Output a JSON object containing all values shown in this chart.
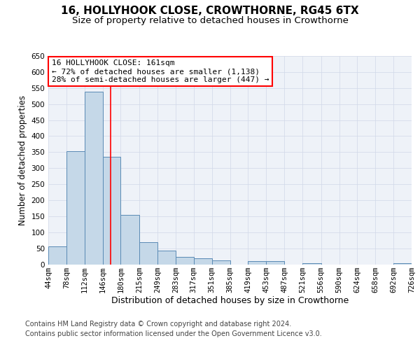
{
  "title": "16, HOLLYHOOK CLOSE, CROWTHORNE, RG45 6TX",
  "subtitle": "Size of property relative to detached houses in Crowthorne",
  "xlabel": "Distribution of detached houses by size in Crowthorne",
  "ylabel": "Number of detached properties",
  "bar_edges": [
    44,
    78,
    112,
    146,
    180,
    215,
    249,
    283,
    317,
    351,
    385,
    419,
    453,
    487,
    521,
    556,
    590,
    624,
    658,
    692,
    726
  ],
  "bar_labels": [
    "44sqm",
    "78sqm",
    "112sqm",
    "146sqm",
    "180sqm",
    "215sqm",
    "249sqm",
    "283sqm",
    "317sqm",
    "351sqm",
    "385sqm",
    "419sqm",
    "453sqm",
    "487sqm",
    "521sqm",
    "556sqm",
    "590sqm",
    "624sqm",
    "658sqm",
    "692sqm",
    "726sqm"
  ],
  "bar_values": [
    55,
    353,
    538,
    335,
    155,
    68,
    42,
    24,
    18,
    11,
    0,
    9,
    9,
    0,
    4,
    0,
    0,
    0,
    0,
    4
  ],
  "bar_color": "#c5d8e8",
  "bar_edge_color": "#5a8ab5",
  "red_line_x": 161,
  "ylim": [
    0,
    650
  ],
  "yticks": [
    0,
    50,
    100,
    150,
    200,
    250,
    300,
    350,
    400,
    450,
    500,
    550,
    600,
    650
  ],
  "grid_color": "#d0d8e8",
  "background_color": "#eef2f8",
  "annotation_line1": "16 HOLLYHOOK CLOSE: 161sqm",
  "annotation_line2": "← 72% of detached houses are smaller (1,138)",
  "annotation_line3": "28% of semi-detached houses are larger (447) →",
  "footer_line1": "Contains HM Land Registry data © Crown copyright and database right 2024.",
  "footer_line2": "Contains public sector information licensed under the Open Government Licence v3.0.",
  "title_fontsize": 11,
  "subtitle_fontsize": 9.5,
  "ylabel_fontsize": 8.5,
  "xlabel_fontsize": 9,
  "tick_fontsize": 7.5,
  "annotation_fontsize": 8,
  "footer_fontsize": 7
}
